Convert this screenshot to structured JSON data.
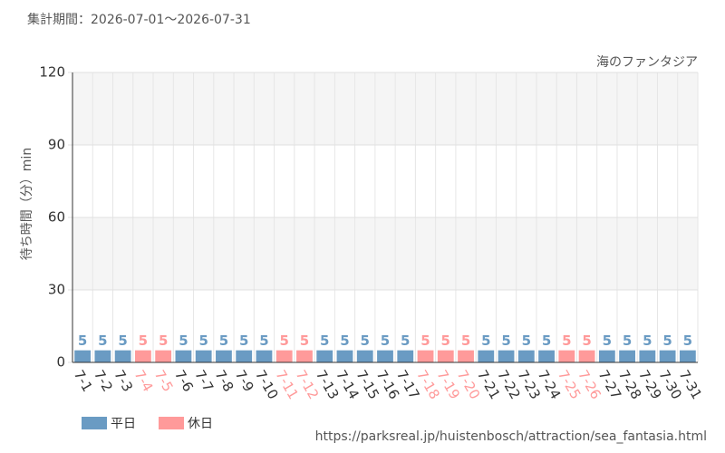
{
  "chart_data": {
    "type": "bar",
    "subtitle": "集計期間：2026-07-01～2026-07-31",
    "title": "海のファンタジア",
    "y_label": "待ち時間（分）min",
    "source": "https://parksreal.jp/huistenbosch/attraction/sea_fantasia.html",
    "categories": [
      "7-1",
      "7-2",
      "7-3",
      "7-4",
      "7-5",
      "7-6",
      "7-7",
      "7-8",
      "7-9",
      "7-10",
      "7-11",
      "7-12",
      "7-13",
      "7-14",
      "7-15",
      "7-16",
      "7-17",
      "7-18",
      "7-19",
      "7-20",
      "7-21",
      "7-22",
      "7-23",
      "7-24",
      "7-25",
      "7-26",
      "7-27",
      "7-28",
      "7-29",
      "7-30",
      "7-31"
    ],
    "series": [
      {
        "name": "平日",
        "color": "#6a9bc3",
        "values": [
          5,
          5,
          5,
          null,
          null,
          5,
          5,
          5,
          5,
          5,
          null,
          null,
          5,
          5,
          5,
          5,
          5,
          null,
          null,
          null,
          5,
          5,
          5,
          5,
          null,
          null,
          5,
          5,
          5,
          5,
          5
        ]
      },
      {
        "name": "休日",
        "color": "#ff9a9a",
        "values": [
          null,
          null,
          null,
          5,
          5,
          null,
          null,
          null,
          null,
          null,
          5,
          5,
          null,
          null,
          null,
          null,
          null,
          5,
          5,
          5,
          null,
          null,
          null,
          null,
          5,
          5,
          null,
          null,
          null,
          null,
          null
        ]
      }
    ],
    "ylim": [
      0,
      120
    ],
    "yticks": [
      0,
      30,
      60,
      90,
      120
    ],
    "grid": true
  }
}
